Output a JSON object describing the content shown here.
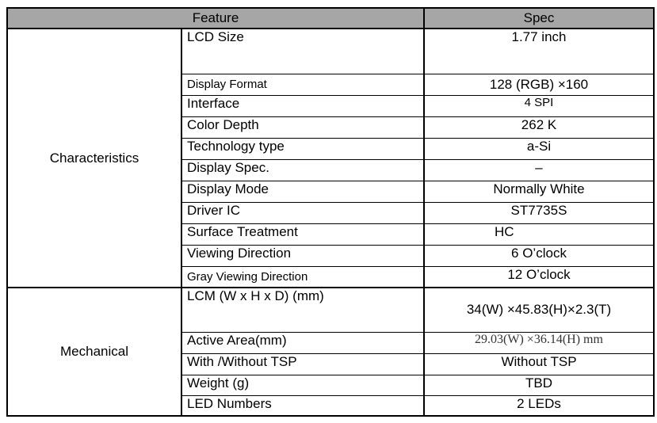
{
  "header": {
    "feature": "Feature",
    "spec": "Spec"
  },
  "groups": [
    {
      "name": "Characteristics",
      "rows": [
        {
          "feature": "LCD Size",
          "spec": "1.77 inch"
        },
        {
          "feature": "Display Format",
          "spec": "128 (RGB) ×160"
        },
        {
          "feature": "Interface",
          "spec": "4 SPI"
        },
        {
          "feature": "Color Depth",
          "spec": "262 K"
        },
        {
          "feature": "Technology type",
          "spec": "a-Si"
        },
        {
          "feature": "Display Spec.",
          "spec": "–"
        },
        {
          "feature": "Display Mode",
          "spec": "Normally White"
        },
        {
          "feature": "Driver IC",
          "spec": "ST7735S"
        },
        {
          "feature": "Surface Treatment",
          "spec": "HC"
        },
        {
          "feature": "Viewing Direction",
          "spec": "6 O’clock"
        },
        {
          "feature": "Gray Viewing Direction",
          "spec": "12 O’clock"
        }
      ]
    },
    {
      "name": "Mechanical",
      "rows": [
        {
          "feature": "LCM (W x H x D) (mm)",
          "spec": "34(W) ×45.83(H)×2.3(T)"
        },
        {
          "feature": "Active Area(mm)",
          "spec": "29.03(W) ×36.14(H) mm"
        },
        {
          "feature": "With /Without TSP",
          "spec": "Without TSP"
        },
        {
          "feature": "Weight (g)",
          "spec": "TBD"
        },
        {
          "feature": "LED Numbers",
          "spec": "2 LEDs"
        }
      ]
    }
  ]
}
